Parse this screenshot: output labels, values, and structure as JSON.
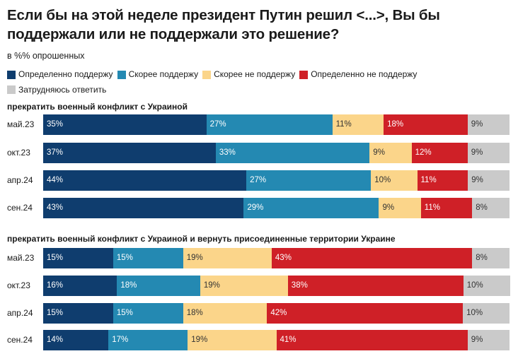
{
  "title": "Если бы на этой неделе президент Путин решил <...>, Вы бы поддержали или не поддержали это решение?",
  "subtitle": "в %% опрошенных",
  "legend": [
    {
      "label": "Определенно поддержу",
      "color": "#0f3d6e"
    },
    {
      "label": "Скорее поддержу",
      "color": "#2489b2"
    },
    {
      "label": "Скорее не поддержу",
      "color": "#fbd58a"
    },
    {
      "label": "Определенно не поддержу",
      "color": "#cf2027"
    },
    {
      "label": "Затрудняюсь ответить",
      "color": "#cacaca"
    }
  ],
  "chart_data": [
    {
      "type": "bar",
      "stacked": true,
      "orientation": "horizontal",
      "title": "прекратить военный конфликт с Украиной",
      "categories": [
        "май.23",
        "окт.23",
        "апр.24",
        "сен.24"
      ],
      "series": [
        {
          "name": "Определенно поддержу",
          "values": [
            35,
            37,
            44,
            43
          ]
        },
        {
          "name": "Скорее поддержу",
          "values": [
            27,
            33,
            27,
            29
          ]
        },
        {
          "name": "Скорее не поддержу",
          "values": [
            11,
            9,
            10,
            9
          ]
        },
        {
          "name": "Определенно не поддержу",
          "values": [
            18,
            12,
            11,
            11
          ]
        },
        {
          "name": "Затрудняюсь ответить",
          "values": [
            9,
            9,
            9,
            8
          ]
        }
      ]
    },
    {
      "type": "bar",
      "stacked": true,
      "orientation": "horizontal",
      "title": "прекратить военный конфликт с Украиной и вернуть присоединенные территории Украине",
      "categories": [
        "май.23",
        "окт.23",
        "апр.24",
        "сен.24"
      ],
      "series": [
        {
          "name": "Определенно поддержу",
          "values": [
            15,
            16,
            15,
            14
          ]
        },
        {
          "name": "Скорее поддержу",
          "values": [
            15,
            18,
            15,
            17
          ]
        },
        {
          "name": "Скорее не поддержу",
          "values": [
            19,
            19,
            18,
            19
          ]
        },
        {
          "name": "Определенно не поддержу",
          "values": [
            43,
            38,
            42,
            41
          ]
        },
        {
          "name": "Затрудняюсь ответить",
          "values": [
            8,
            10,
            10,
            9
          ]
        }
      ]
    }
  ]
}
